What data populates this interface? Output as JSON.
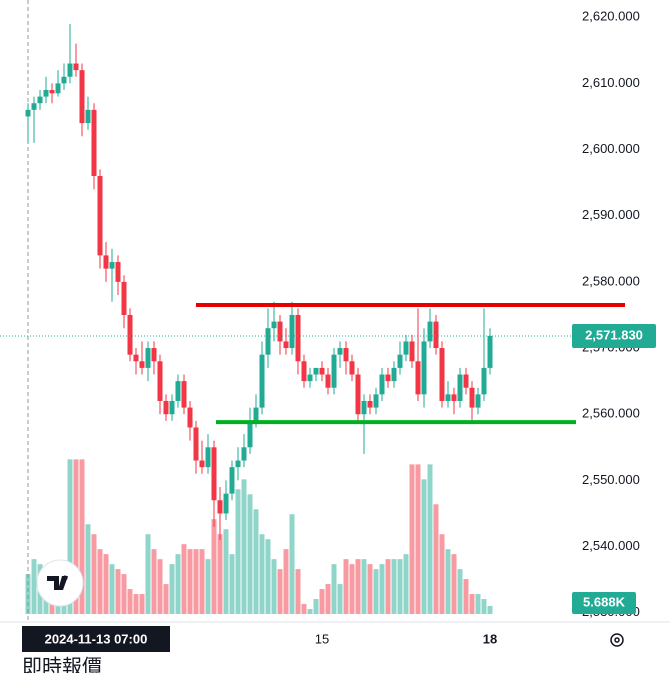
{
  "chart_data": {
    "type": "candlestick",
    "ohlc": [
      [
        2605,
        2607,
        2601,
        2606
      ],
      [
        2606,
        2608,
        2601,
        2607
      ],
      [
        2607,
        2609,
        2606,
        2608
      ],
      [
        2608,
        2611,
        2607,
        2609
      ],
      [
        2609,
        2610,
        2607,
        2608.5
      ],
      [
        2608.5,
        2612,
        2608,
        2610
      ],
      [
        2610,
        2613,
        2609,
        2611
      ],
      [
        2611,
        2619,
        2610,
        2613
      ],
      [
        2613,
        2616,
        2611,
        2612
      ],
      [
        2612,
        2613,
        2602,
        2604
      ],
      [
        2604,
        2608,
        2603,
        2606
      ],
      [
        2606,
        2607,
        2594,
        2596
      ],
      [
        2596,
        2597,
        2582,
        2584
      ],
      [
        2584,
        2586,
        2580,
        2582
      ],
      [
        2582,
        2585,
        2577,
        2583
      ],
      [
        2583,
        2584,
        2578,
        2580
      ],
      [
        2580,
        2581,
        2573,
        2575
      ],
      [
        2575,
        2576,
        2568,
        2569
      ],
      [
        2569,
        2570,
        2566,
        2568
      ],
      [
        2568,
        2571,
        2566,
        2567
      ],
      [
        2567,
        2571,
        2565,
        2570
      ],
      [
        2570,
        2571,
        2566,
        2568
      ],
      [
        2568,
        2569,
        2560,
        2562
      ],
      [
        2562,
        2563,
        2559,
        2560
      ],
      [
        2560,
        2563,
        2559,
        2562
      ],
      [
        2562,
        2566,
        2561,
        2565
      ],
      [
        2565,
        2566,
        2560,
        2561
      ],
      [
        2561,
        2562,
        2556,
        2558
      ],
      [
        2558,
        2559,
        2551,
        2553
      ],
      [
        2553,
        2556,
        2551,
        2552
      ],
      [
        2552,
        2557,
        2551,
        2555
      ],
      [
        2555,
        2556,
        2543,
        2547
      ],
      [
        2547,
        2549,
        2541,
        2545
      ],
      [
        2545,
        2550,
        2544,
        2548
      ],
      [
        2548,
        2553,
        2547,
        2552
      ],
      [
        2552,
        2555,
        2550,
        2553
      ],
      [
        2553,
        2557,
        2552,
        2555
      ],
      [
        2555,
        2561,
        2554,
        2559
      ],
      [
        2559,
        2563,
        2558,
        2561
      ],
      [
        2561,
        2571,
        2560,
        2569
      ],
      [
        2569,
        2576,
        2567,
        2573
      ],
      [
        2573,
        2577,
        2571,
        2574
      ],
      [
        2574,
        2575,
        2569,
        2571
      ],
      [
        2571,
        2573,
        2569,
        2570
      ],
      [
        2570,
        2577,
        2569,
        2575
      ],
      [
        2575,
        2576,
        2566,
        2568
      ],
      [
        2568,
        2569,
        2564,
        2565
      ],
      [
        2565,
        2567,
        2564,
        2566
      ],
      [
        2566,
        2567,
        2565,
        2567
      ],
      [
        2567,
        2568,
        2565,
        2566
      ],
      [
        2566,
        2567,
        2563,
        2564
      ],
      [
        2564,
        2570,
        2563,
        2569
      ],
      [
        2569,
        2571,
        2567,
        2570
      ],
      [
        2570,
        2571,
        2566,
        2568
      ],
      [
        2568,
        2569,
        2565,
        2566
      ],
      [
        2566,
        2567,
        2559,
        2560
      ],
      [
        2560,
        2563,
        2554,
        2562
      ],
      [
        2562,
        2563,
        2560,
        2561
      ],
      [
        2561,
        2564,
        2560,
        2563
      ],
      [
        2563,
        2567,
        2562,
        2566
      ],
      [
        2566,
        2567,
        2564,
        2565
      ],
      [
        2565,
        2568,
        2564,
        2567
      ],
      [
        2567,
        2571,
        2566,
        2569
      ],
      [
        2569,
        2572,
        2568,
        2571
      ],
      [
        2571,
        2572,
        2567,
        2568
      ],
      [
        2568,
        2576,
        2562,
        2563
      ],
      [
        2563,
        2573,
        2561,
        2571
      ],
      [
        2571,
        2576,
        2570,
        2574
      ],
      [
        2574,
        2575,
        2569,
        2570
      ],
      [
        2570,
        2571,
        2561,
        2562
      ],
      [
        2562,
        2565,
        2561,
        2563
      ],
      [
        2563,
        2564,
        2560,
        2562
      ],
      [
        2562,
        2567,
        2561,
        2566
      ],
      [
        2566,
        2567,
        2563,
        2564
      ],
      [
        2564,
        2565,
        2559,
        2561
      ],
      [
        2561,
        2564,
        2560,
        2563
      ],
      [
        2563,
        2576,
        2562,
        2567
      ],
      [
        2567,
        2573,
        2566,
        2571.83
      ]
    ],
    "volumes": [
      28000,
      38500,
      35000,
      31500,
      28000,
      28000,
      35000,
      108500,
      108500,
      108500,
      63000,
      56000,
      45500,
      42000,
      35000,
      31500,
      28000,
      17500,
      14000,
      14000,
      56000,
      45500,
      38500,
      21000,
      35000,
      42000,
      49000,
      45500,
      45500,
      45500,
      38500,
      66500,
      56000,
      59500,
      42000,
      87500,
      94500,
      84000,
      73500,
      56000,
      52500,
      38500,
      31500,
      45500,
      70000,
      31500,
      7000,
      3500,
      10500,
      17500,
      21000,
      35000,
      21000,
      38500,
      35000,
      38500,
      38500,
      35000,
      31500,
      35000,
      38500,
      38500,
      38500,
      42000,
      105000,
      105000,
      94500,
      105000,
      77000,
      56000,
      45500,
      42000,
      31500,
      24500,
      14000,
      14000,
      10500,
      5688
    ],
    "categories": [
      null,
      null,
      null,
      null,
      null,
      null,
      null,
      null,
      null,
      null,
      null,
      null,
      null,
      null,
      null,
      null,
      null,
      null,
      null,
      null,
      null,
      null,
      null,
      null,
      null,
      null,
      null,
      null,
      null,
      null,
      null,
      null,
      null,
      null,
      null,
      null,
      null,
      null,
      null,
      null,
      null,
      null,
      null,
      null,
      null,
      null,
      null,
      null,
      null,
      "15",
      null,
      null,
      null,
      null,
      null,
      null,
      null,
      null,
      null,
      null,
      null,
      null,
      null,
      null,
      null,
      null,
      null,
      null,
      null,
      null,
      null,
      null,
      null,
      null,
      null,
      null,
      null,
      "18"
    ],
    "up_color": "#22ab94",
    "down_color": "#f23645",
    "ylim": [
      2528.9,
      2622.6
    ],
    "yticks": [
      {
        "value": 2530,
        "label": "2,530.000"
      },
      {
        "value": 2540,
        "label": "2,540.000"
      },
      {
        "value": 2550,
        "label": "2,550.000"
      },
      {
        "value": 2560,
        "label": "2,560.000"
      },
      {
        "value": 2570,
        "label": "2,570.000"
      },
      {
        "value": 2580,
        "label": "2,580.000"
      },
      {
        "value": 2590,
        "label": "2,590.000"
      },
      {
        "value": 2600,
        "label": "2,600.000"
      },
      {
        "value": 2610,
        "label": "2,610.000"
      },
      {
        "value": 2620,
        "label": "2,620.000"
      }
    ],
    "volume_lim": [
      0,
      120000
    ],
    "levels": [
      {
        "value": 2576.5,
        "color": "#e60000"
      },
      {
        "value": 2558.8,
        "color": "#00b020"
      }
    ],
    "last_price": {
      "value": 2571.83,
      "label": "2,571.830"
    },
    "last_volume": {
      "value": 5688,
      "label": "5.688K"
    },
    "crosshair_time": "2024-11-13  07:00",
    "footer_text": "即時報價"
  }
}
